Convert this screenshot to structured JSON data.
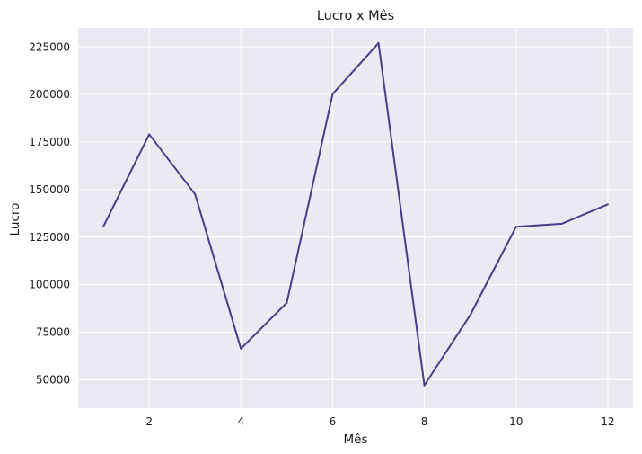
{
  "chart_data": {
    "type": "line",
    "title": "Lucro x Mês",
    "xlabel": "Mês",
    "ylabel": "Lucro",
    "xlim": [
      0.45,
      12.55
    ],
    "ylim": [
      35000,
      235000
    ],
    "xticks": [
      2,
      4,
      6,
      8,
      10,
      12
    ],
    "xtick_labels": [
      "2",
      "4",
      "6",
      "8",
      "10",
      "12"
    ],
    "yticks": [
      50000,
      75000,
      100000,
      125000,
      150000,
      175000,
      200000,
      225000
    ],
    "ytick_labels": [
      "50000",
      "75000",
      "100000",
      "125000",
      "150000",
      "175000",
      "200000",
      "225000"
    ],
    "grid": true,
    "legend": "none",
    "series": [
      {
        "color": "#483d8b",
        "x": [
          1,
          2,
          3,
          4,
          5,
          6,
          7,
          8,
          9,
          10,
          11,
          12
        ],
        "y": [
          130500,
          179000,
          147500,
          66300,
          90400,
          200200,
          227000,
          47000,
          84000,
          130400,
          132000,
          142200
        ]
      }
    ]
  }
}
